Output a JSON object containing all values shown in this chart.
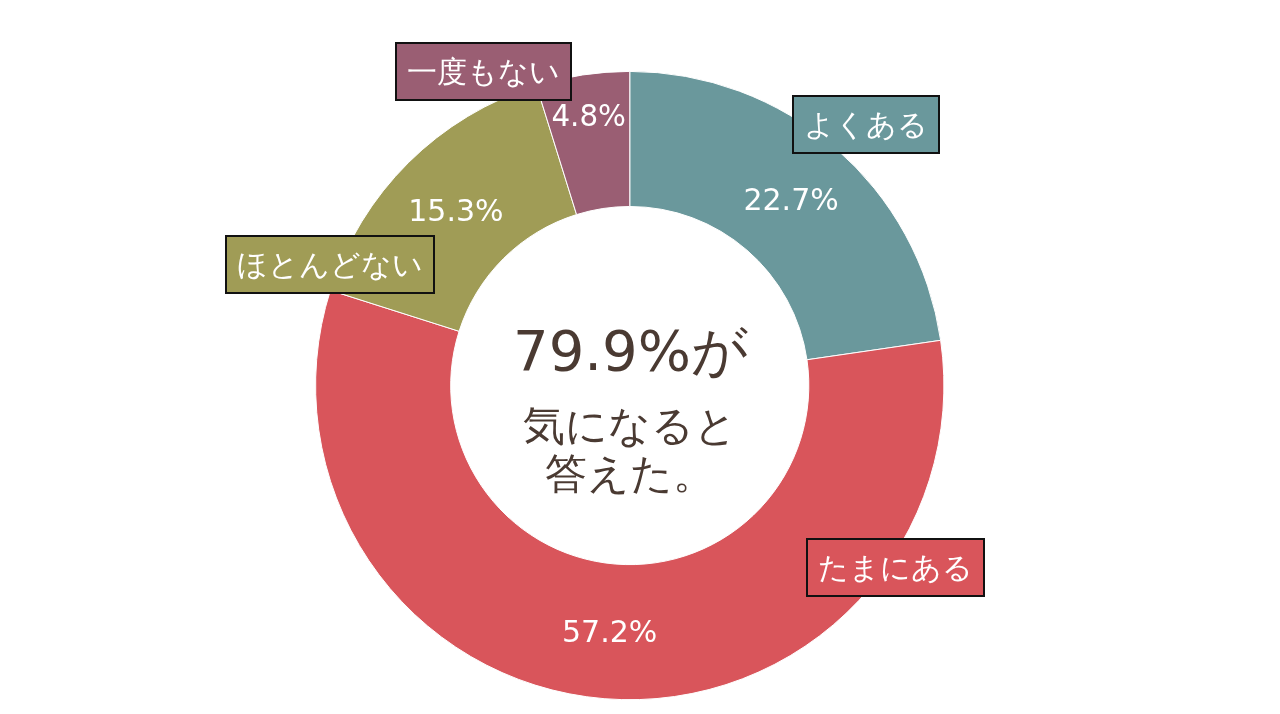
{
  "chart_data": {
    "type": "donut",
    "categories": [
      "よくある",
      "たまにある",
      "ほとんどない",
      "一度もない"
    ],
    "values": [
      22.7,
      57.2,
      15.3,
      4.8
    ],
    "colors": [
      "#6a989c",
      "#d9555b",
      "#a09c56",
      "#9a5e73"
    ],
    "value_labels": [
      "22.7%",
      "57.2%",
      "15.3%",
      "4.8%"
    ],
    "annotations": [
      "79.9%が",
      "気になると",
      "答えた。"
    ],
    "legend": false
  }
}
